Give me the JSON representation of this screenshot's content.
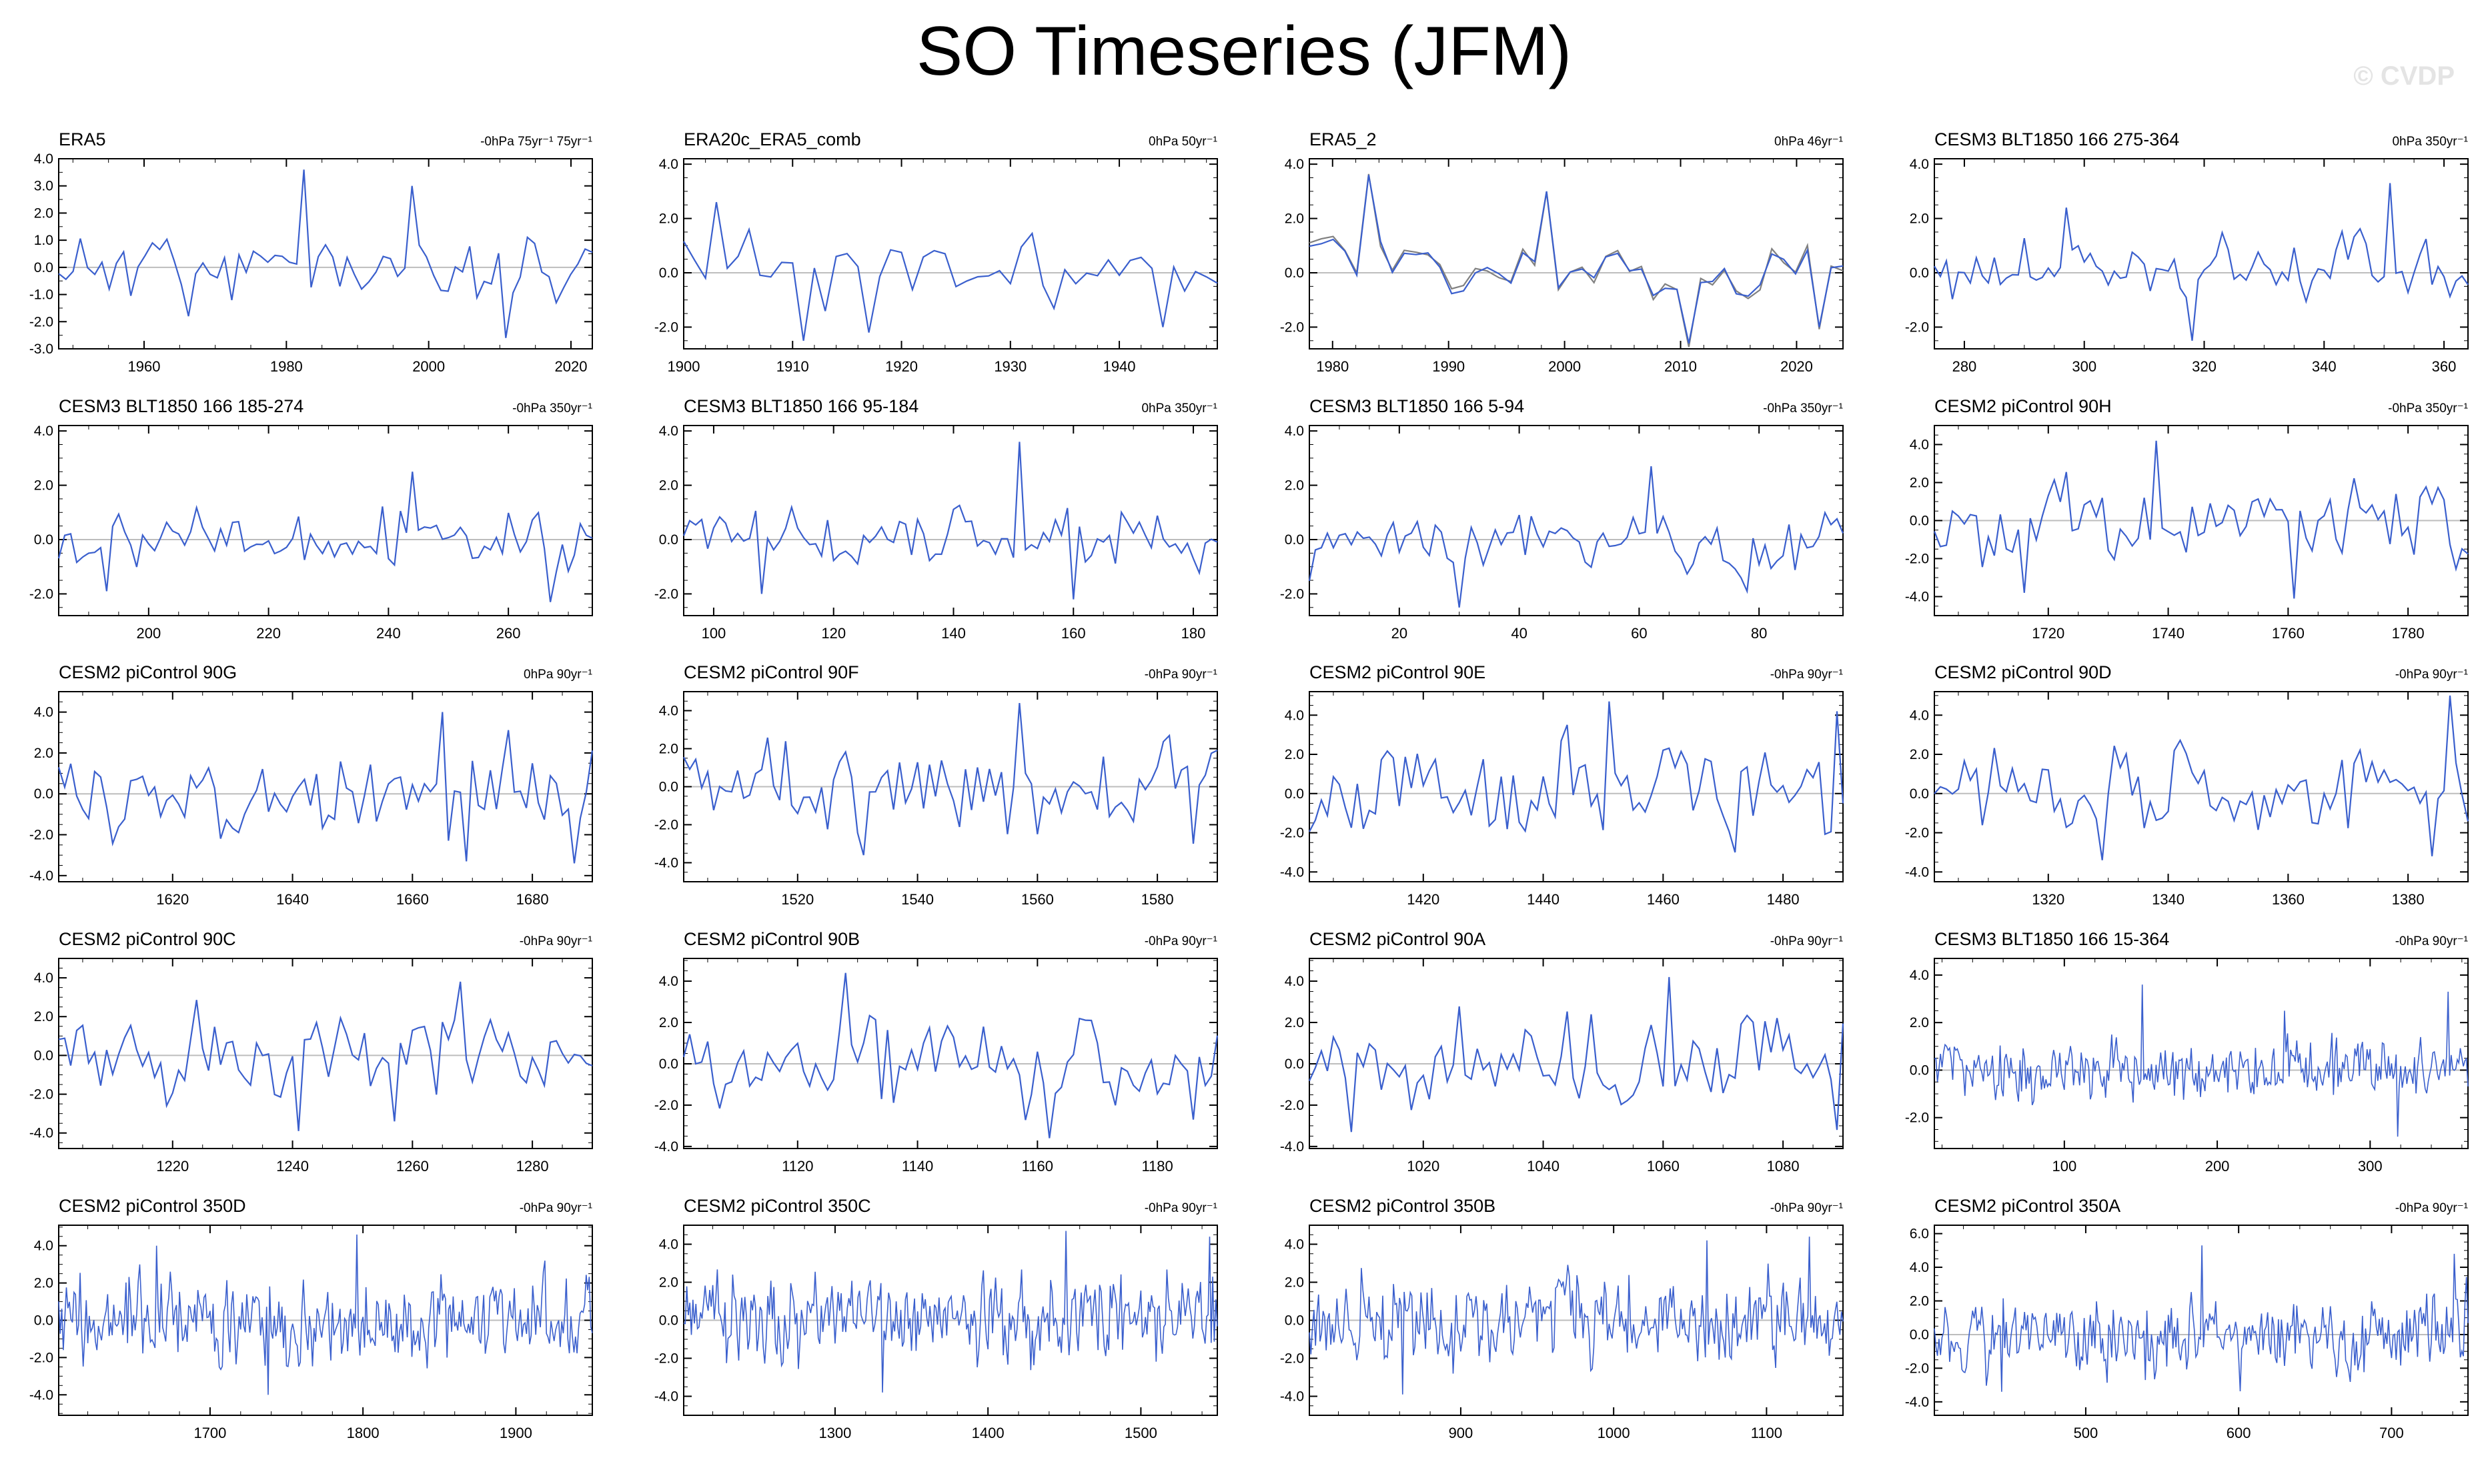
{
  "title": "SO Timeseries (JFM)",
  "watermark": "© CVDP",
  "colors": {
    "line": "#3a5fcd",
    "line_grey": "#808080",
    "axis": "#000000",
    "zero": "#bdbdbd"
  },
  "chart_data": [
    {
      "type": "line",
      "title": "ERA5",
      "subtitle": "-0hPa 75yr⁻¹ 75yr⁻¹",
      "x_range": [
        1948,
        2023
      ],
      "xticks": [
        1960,
        1980,
        2000,
        2020
      ],
      "yticks": [
        -3,
        -2,
        -1,
        0,
        1,
        2,
        3,
        4
      ],
      "ylim": [
        -3,
        4
      ],
      "amp": 1.0,
      "points": 75,
      "seed": 11,
      "spikes": [
        [
          1982,
          3.6
        ],
        [
          1998,
          3.0
        ],
        [
          2011,
          -2.6
        ],
        [
          1966,
          -1.8
        ]
      ],
      "grey": false
    },
    {
      "type": "line",
      "title": "ERA20c_ERA5_comb",
      "subtitle": "0hPa 50yr⁻¹",
      "x_range": [
        1900,
        1949
      ],
      "xticks": [
        1900,
        1910,
        1920,
        1930,
        1940
      ],
      "yticks": [
        -2,
        0,
        2,
        4
      ],
      "ylim": [
        -2.8,
        4.2
      ],
      "amp": 1.0,
      "points": 50,
      "seed": 23,
      "spikes": [
        [
          1903,
          2.6
        ],
        [
          1911,
          -2.5
        ],
        [
          1917,
          -2.2
        ],
        [
          1944,
          -2.0
        ]
      ],
      "grey": false
    },
    {
      "type": "line",
      "title": "ERA5_2",
      "subtitle": "0hPa 46yr⁻¹",
      "x_range": [
        1978,
        2024
      ],
      "xticks": [
        1980,
        1990,
        2000,
        2010,
        2020
      ],
      "yticks": [
        -2,
        0,
        2,
        4
      ],
      "ylim": [
        -2.8,
        4.2
      ],
      "amp": 1.0,
      "points": 46,
      "seed": 37,
      "spikes": [
        [
          1983,
          3.6
        ],
        [
          1998,
          3.0
        ],
        [
          2011,
          -2.6
        ],
        [
          2022,
          -2.0
        ]
      ],
      "grey": true
    },
    {
      "type": "line",
      "title": "CESM3 BLT1850 166 275-364",
      "subtitle": "0hPa 350yr⁻¹",
      "x_range": [
        275,
        364
      ],
      "xticks": [
        280,
        300,
        320,
        340,
        360
      ],
      "yticks": [
        -2,
        0,
        2,
        4
      ],
      "ylim": [
        -2.8,
        4.2
      ],
      "amp": 1.0,
      "points": 90,
      "seed": 41,
      "spikes": [
        [
          351,
          3.3
        ],
        [
          297,
          2.4
        ],
        [
          318,
          -2.5
        ]
      ],
      "grey": false
    },
    {
      "type": "line",
      "title": "CESM3 BLT1850 166 185-274",
      "subtitle": "-0hPa 350yr⁻¹",
      "x_range": [
        185,
        274
      ],
      "xticks": [
        200,
        220,
        240,
        260
      ],
      "yticks": [
        -2,
        0,
        2,
        4
      ],
      "ylim": [
        -2.8,
        4.2
      ],
      "amp": 0.9,
      "points": 90,
      "seed": 53,
      "spikes": [
        [
          244,
          2.5
        ],
        [
          267,
          -2.3
        ],
        [
          193,
          -1.9
        ]
      ],
      "grey": false
    },
    {
      "type": "line",
      "title": "CESM3 BLT1850 166 95-184",
      "subtitle": "0hPa 350yr⁻¹",
      "x_range": [
        95,
        184
      ],
      "xticks": [
        100,
        120,
        140,
        160,
        180
      ],
      "yticks": [
        -2,
        0,
        2,
        4
      ],
      "ylim": [
        -2.8,
        4.2
      ],
      "amp": 0.9,
      "points": 90,
      "seed": 61,
      "spikes": [
        [
          151,
          3.6
        ],
        [
          160,
          -2.2
        ],
        [
          108,
          -2.0
        ]
      ],
      "grey": false
    },
    {
      "type": "line",
      "title": "CESM3 BLT1850 166 5-94",
      "subtitle": "-0hPa 350yr⁻¹",
      "x_range": [
        5,
        94
      ],
      "xticks": [
        20,
        40,
        60,
        80
      ],
      "yticks": [
        -2,
        0,
        2,
        4
      ],
      "ylim": [
        -2.8,
        4.2
      ],
      "amp": 0.9,
      "points": 90,
      "seed": 71,
      "spikes": [
        [
          62,
          2.7
        ],
        [
          30,
          -2.5
        ],
        [
          78,
          -1.9
        ]
      ],
      "grey": false
    },
    {
      "type": "line",
      "title": "CESM2 piControl 90H",
      "subtitle": "-0hPa 350yr⁻¹",
      "x_range": [
        1701,
        1790
      ],
      "xticks": [
        1720,
        1740,
        1760,
        1780
      ],
      "yticks": [
        -4,
        -2,
        0,
        2,
        4
      ],
      "ylim": [
        -5,
        5
      ],
      "amp": 1.9,
      "points": 90,
      "seed": 83,
      "spikes": [
        [
          1738,
          4.2
        ],
        [
          1761,
          -4.1
        ],
        [
          1716,
          -3.8
        ]
      ],
      "grey": false
    },
    {
      "type": "line",
      "title": "CESM2 piControl 90G",
      "subtitle": "0hPa 90yr⁻¹",
      "x_range": [
        1601,
        1690
      ],
      "xticks": [
        1620,
        1640,
        1660,
        1680
      ],
      "yticks": [
        -4,
        -2,
        0,
        2,
        4
      ],
      "ylim": [
        -4.3,
        5
      ],
      "amp": 1.8,
      "points": 90,
      "seed": 97,
      "spikes": [
        [
          1665,
          4.0
        ],
        [
          1669,
          -3.3
        ],
        [
          1687,
          -3.4
        ]
      ],
      "grey": false
    },
    {
      "type": "line",
      "title": "CESM2 piControl 90F",
      "subtitle": "-0hPa 90yr⁻¹",
      "x_range": [
        1501,
        1590
      ],
      "xticks": [
        1520,
        1540,
        1560,
        1580
      ],
      "yticks": [
        -4,
        -2,
        0,
        2,
        4
      ],
      "ylim": [
        -5,
        5
      ],
      "amp": 1.9,
      "points": 90,
      "seed": 103,
      "spikes": [
        [
          1557,
          4.4
        ],
        [
          1531,
          -3.6
        ],
        [
          1586,
          -3.0
        ]
      ],
      "grey": false
    },
    {
      "type": "line",
      "title": "CESM2 piControl 90E",
      "subtitle": "-0hPa 90yr⁻¹",
      "x_range": [
        1401,
        1490
      ],
      "xticks": [
        1420,
        1440,
        1460,
        1480
      ],
      "yticks": [
        -4,
        -2,
        0,
        2,
        4
      ],
      "ylim": [
        -4.5,
        5.2
      ],
      "amp": 1.9,
      "points": 90,
      "seed": 113,
      "spikes": [
        [
          1451,
          4.7
        ],
        [
          1489,
          4.2
        ],
        [
          1472,
          -3.0
        ]
      ],
      "grey": false
    },
    {
      "type": "line",
      "title": "CESM2 piControl 90D",
      "subtitle": "-0hPa 90yr⁻¹",
      "x_range": [
        1301,
        1390
      ],
      "xticks": [
        1320,
        1340,
        1360,
        1380
      ],
      "yticks": [
        -4,
        -2,
        0,
        2,
        4
      ],
      "ylim": [
        -4.5,
        5.2
      ],
      "amp": 1.8,
      "points": 90,
      "seed": 127,
      "spikes": [
        [
          1387,
          5.0
        ],
        [
          1329,
          -3.4
        ],
        [
          1384,
          -3.2
        ]
      ],
      "grey": false
    },
    {
      "type": "line",
      "title": "CESM2 piControl 90C",
      "subtitle": "-0hPa 90yr⁻¹",
      "x_range": [
        1201,
        1290
      ],
      "xticks": [
        1220,
        1240,
        1260,
        1280
      ],
      "yticks": [
        -4,
        -2,
        0,
        2,
        4
      ],
      "ylim": [
        -4.8,
        5
      ],
      "amp": 1.8,
      "points": 90,
      "seed": 131,
      "spikes": [
        [
          1241,
          -3.9
        ],
        [
          1257,
          -3.4
        ],
        [
          1268,
          3.8
        ]
      ],
      "grey": false
    },
    {
      "type": "line",
      "title": "CESM2 piControl 90B",
      "subtitle": "-0hPa 90yr⁻¹",
      "x_range": [
        1101,
        1190
      ],
      "xticks": [
        1120,
        1140,
        1160,
        1180
      ],
      "yticks": [
        -4,
        -2,
        0,
        2,
        4
      ],
      "ylim": [
        -4.1,
        5.1
      ],
      "amp": 1.8,
      "points": 90,
      "seed": 139,
      "spikes": [
        [
          1128,
          4.4
        ],
        [
          1162,
          -3.6
        ],
        [
          1186,
          -2.7
        ]
      ],
      "grey": false
    },
    {
      "type": "line",
      "title": "CESM2 piControl 90A",
      "subtitle": "-0hPa 90yr⁻¹",
      "x_range": [
        1001,
        1090
      ],
      "xticks": [
        1020,
        1040,
        1060,
        1080
      ],
      "yticks": [
        -4,
        -2,
        0,
        2,
        4
      ],
      "ylim": [
        -4.1,
        5.1
      ],
      "amp": 1.8,
      "points": 90,
      "seed": 149,
      "spikes": [
        [
          1061,
          4.2
        ],
        [
          1089,
          -3.2
        ],
        [
          1008,
          -3.3
        ]
      ],
      "grey": false
    },
    {
      "type": "line",
      "title": "CESM3 BLT1850 166 15-364",
      "subtitle": "-0hPa 90yr⁻¹",
      "x_range": [
        15,
        364
      ],
      "xticks": [
        100,
        200,
        300
      ],
      "yticks": [
        -2,
        0,
        2,
        4
      ],
      "ylim": [
        -3.3,
        4.7
      ],
      "amp": 1.0,
      "points": 350,
      "seed": 157,
      "spikes": [
        [
          151,
          3.6
        ],
        [
          351,
          3.3
        ],
        [
          318,
          -2.8
        ],
        [
          244,
          2.5
        ]
      ],
      "grey": false
    },
    {
      "type": "line",
      "title": "CESM2 piControl 350D",
      "subtitle": "-0hPa 90yr⁻¹",
      "x_range": [
        1601,
        1950
      ],
      "xticks": [
        1700,
        1800,
        1900
      ],
      "yticks": [
        -4,
        -2,
        0,
        2,
        4
      ],
      "ylim": [
        -5.1,
        5.1
      ],
      "amp": 1.8,
      "points": 350,
      "seed": 163,
      "spikes": [
        [
          1665,
          4.0
        ],
        [
          1796,
          4.6
        ],
        [
          1738,
          -4.0
        ]
      ],
      "grey": false
    },
    {
      "type": "line",
      "title": "CESM2 piControl 350C",
      "subtitle": "-0hPa 90yr⁻¹",
      "x_range": [
        1201,
        1550
      ],
      "xticks": [
        1300,
        1400,
        1500
      ],
      "yticks": [
        -4,
        -2,
        0,
        2,
        4
      ],
      "ylim": [
        -5,
        5
      ],
      "amp": 1.8,
      "points": 350,
      "seed": 173,
      "spikes": [
        [
          1451,
          4.7
        ],
        [
          1545,
          4.4
        ],
        [
          1331,
          -3.8
        ]
      ],
      "grey": false
    },
    {
      "type": "line",
      "title": "CESM2 piControl 350B",
      "subtitle": "-0hPa 90yr⁻¹",
      "x_range": [
        801,
        1150
      ],
      "xticks": [
        900,
        1000,
        1100
      ],
      "yticks": [
        -4,
        -2,
        0,
        2,
        4
      ],
      "ylim": [
        -5,
        5
      ],
      "amp": 1.8,
      "points": 350,
      "seed": 181,
      "spikes": [
        [
          1128,
          4.4
        ],
        [
          862,
          -3.9
        ],
        [
          1061,
          4.2
        ]
      ],
      "grey": false
    },
    {
      "type": "line",
      "title": "CESM2 piControl 350A",
      "subtitle": "-0hPa 90yr⁻¹",
      "x_range": [
        401,
        750
      ],
      "xticks": [
        500,
        600,
        700
      ],
      "yticks": [
        -4,
        -2,
        0,
        2,
        4,
        6
      ],
      "ylim": [
        -4.8,
        6.5
      ],
      "amp": 1.8,
      "points": 350,
      "seed": 191,
      "spikes": [
        [
          576,
          5.3
        ],
        [
          445,
          -3.4
        ],
        [
          741,
          4.8
        ]
      ],
      "grey": false
    }
  ]
}
